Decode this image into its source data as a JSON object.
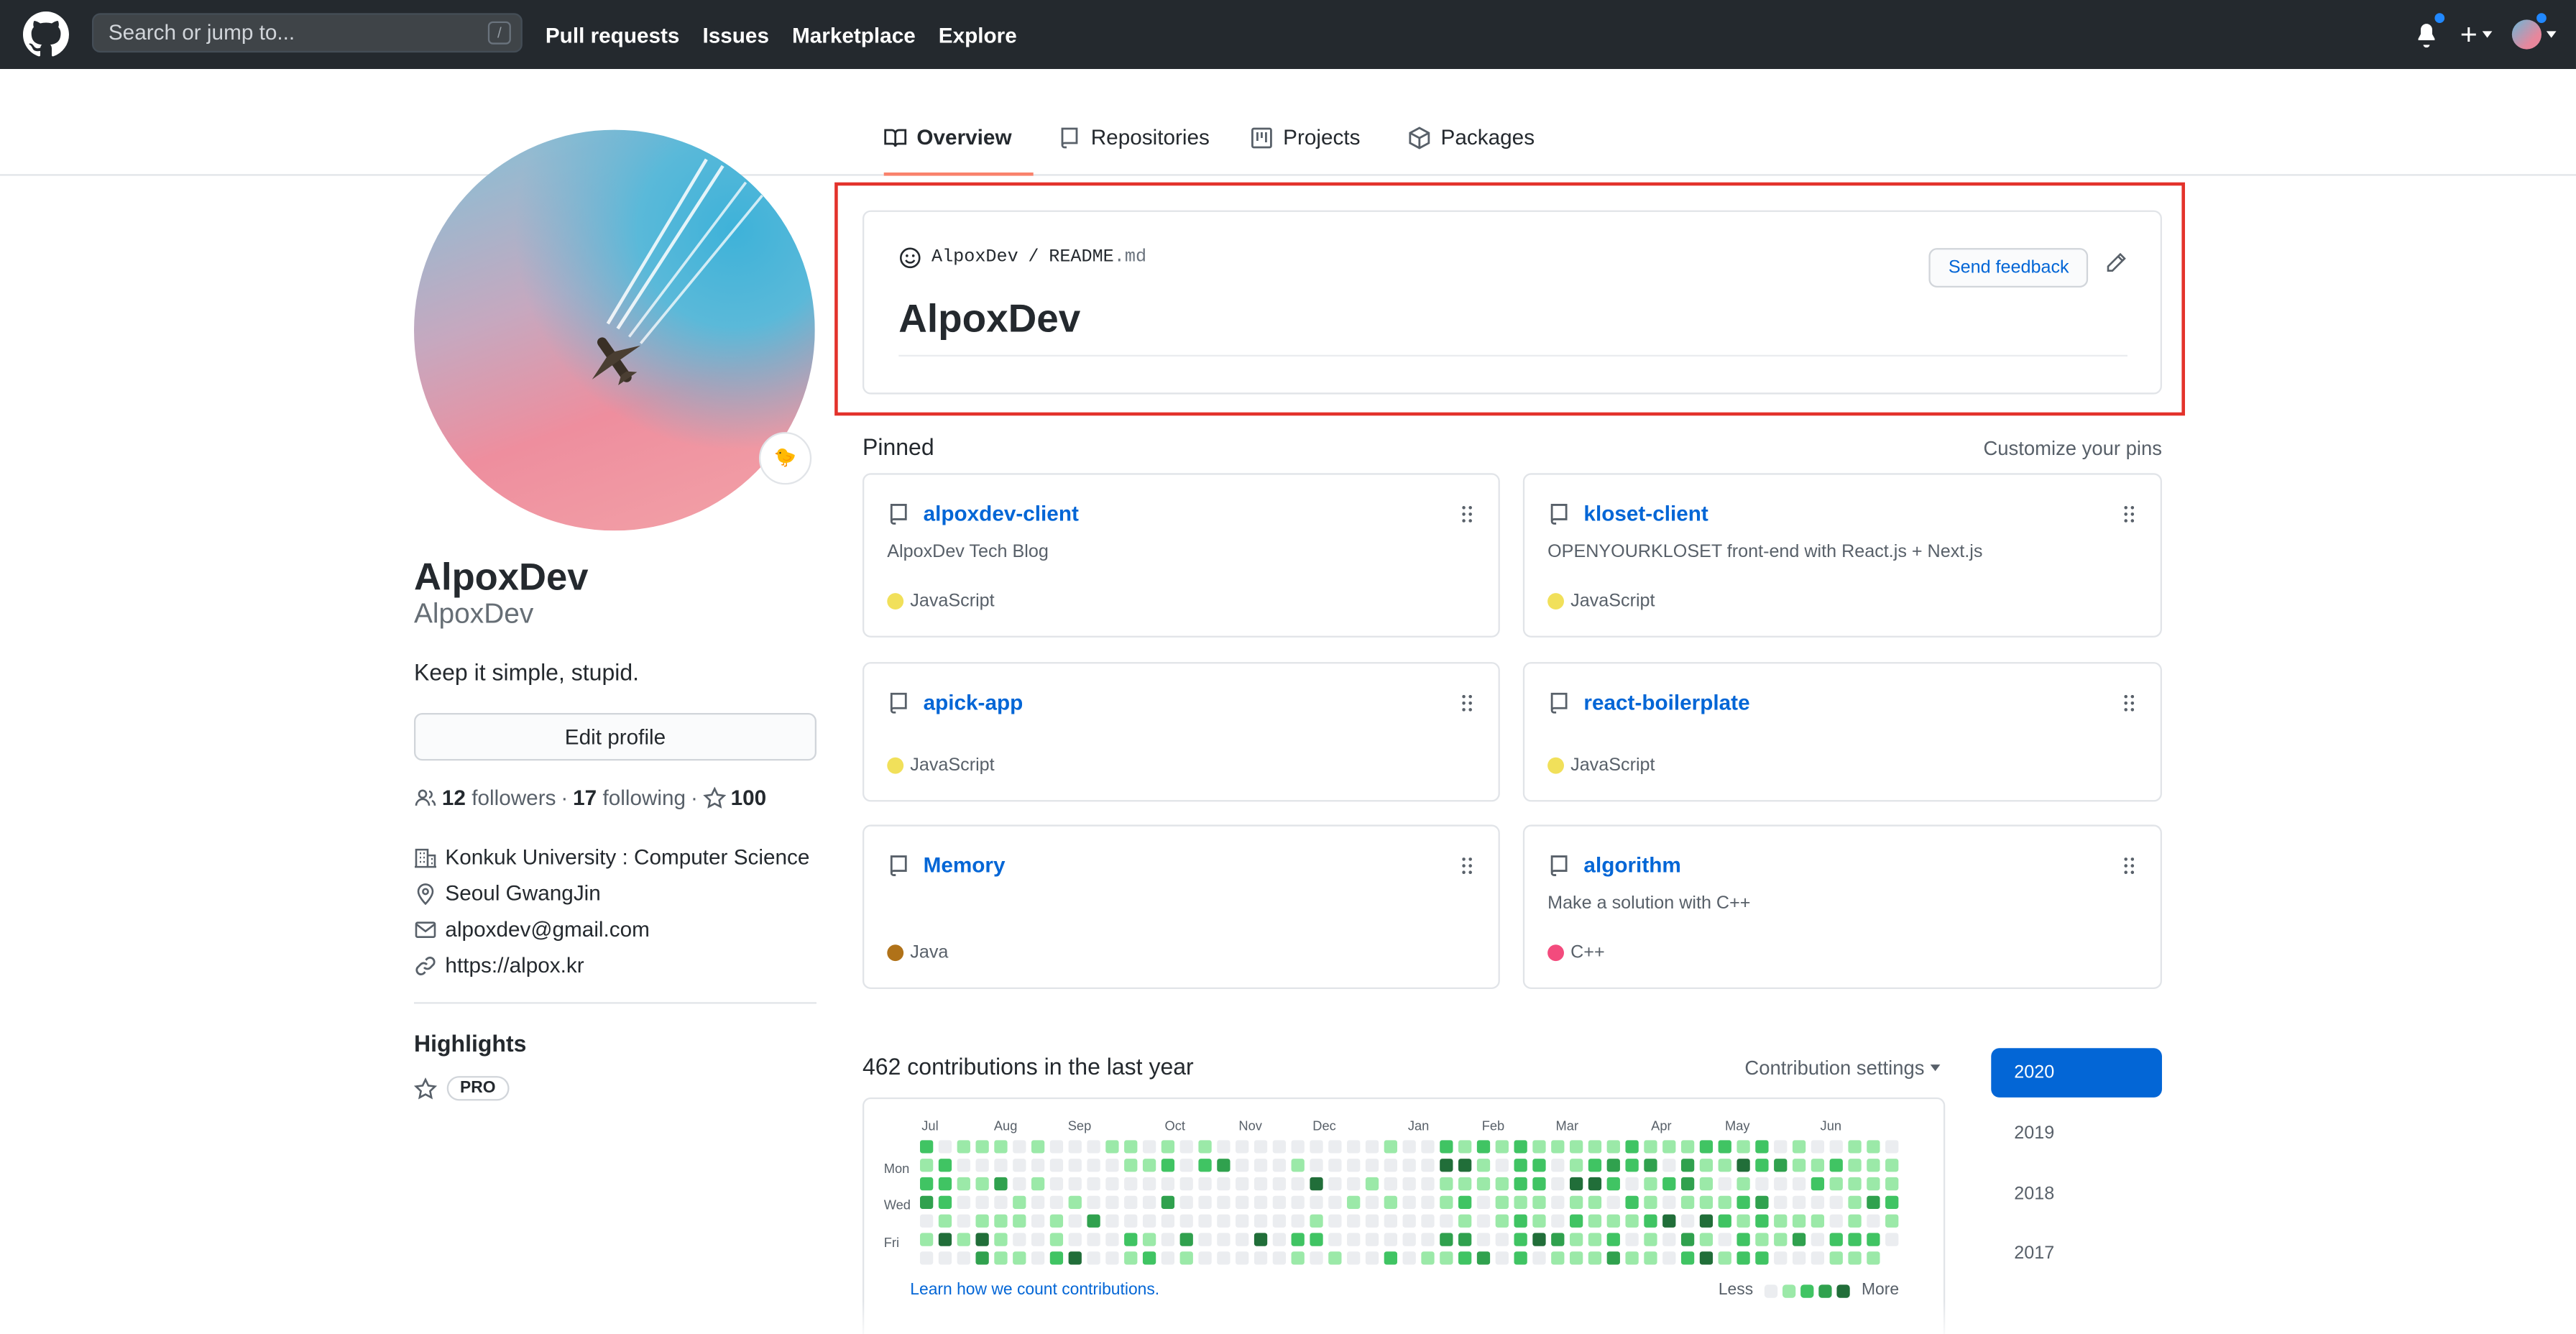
{
  "header": {
    "search_placeholder": "Search or jump to...",
    "search_shortcut": "/",
    "nav": [
      "Pull requests",
      "Issues",
      "Marketplace",
      "Explore"
    ],
    "plus_icon": "plus-icon",
    "notification_icon": "bell-icon"
  },
  "tabs": [
    {
      "label": "Overview",
      "icon": "book-icon",
      "active": true
    },
    {
      "label": "Repositories",
      "icon": "repo-icon"
    },
    {
      "label": "Projects",
      "icon": "project-icon"
    },
    {
      "label": "Packages",
      "icon": "package-icon"
    }
  ],
  "profile": {
    "name": "AlpoxDev",
    "login": "AlpoxDev",
    "bio": "Keep it simple, stupid.",
    "status_emoji": "🐤",
    "edit_label": "Edit profile",
    "followers_count": "12",
    "followers_label": "followers",
    "following_count": "17",
    "following_label": "following",
    "stars_count": "100",
    "organization": "Konkuk University : Computer Science",
    "location": "Seoul GwangJin",
    "email": "alpoxdev@gmail.com",
    "website": "https://alpox.kr",
    "highlights_title": "Highlights",
    "pro_badge": "PRO"
  },
  "readme": {
    "owner": "AlpoxDev",
    "separator": "/",
    "file_name": "README",
    "file_ext": ".md",
    "title": "AlpoxDev",
    "feedback_label": "Send feedback"
  },
  "pinned": {
    "title": "Pinned",
    "customize_label": "Customize your pins",
    "items": [
      {
        "name": "alpoxdev-client",
        "description": "AlpoxDev Tech Blog",
        "language": "JavaScript",
        "color": "#f1e05a"
      },
      {
        "name": "kloset-client",
        "description": "OPENYOURKLOSET front-end with React.js + Next.js",
        "language": "JavaScript",
        "color": "#f1e05a"
      },
      {
        "name": "apick-app",
        "description": "",
        "language": "JavaScript",
        "color": "#f1e05a"
      },
      {
        "name": "react-boilerplate",
        "description": "",
        "language": "JavaScript",
        "color": "#f1e05a"
      },
      {
        "name": "Memory",
        "description": "",
        "language": "Java",
        "color": "#b07219"
      },
      {
        "name": "algorithm",
        "description": "Make a solution with C++",
        "language": "C++",
        "color": "#f34b7d"
      }
    ]
  },
  "contributions": {
    "title": "462 contributions in the last year",
    "settings_label": "Contribution settings",
    "months": [
      "Jul",
      "Aug",
      "Sep",
      "Oct",
      "Nov",
      "Dec",
      "Jan",
      "Feb",
      "Mar",
      "Apr",
      "May",
      "Jun"
    ],
    "day_labels": [
      "Mon",
      "Wed",
      "Fri"
    ],
    "learn_link": "Learn how we count contributions.",
    "legend_less": "Less",
    "legend_more": "More",
    "colors": [
      "#ebedf0",
      "#9be9a8",
      "#40c463",
      "#30a14e",
      "#216e39"
    ]
  },
  "years": [
    "2020",
    "2019",
    "2018",
    "2017"
  ],
  "accent_color": "#0366d6",
  "highlight_frame_color": "#e3322b"
}
